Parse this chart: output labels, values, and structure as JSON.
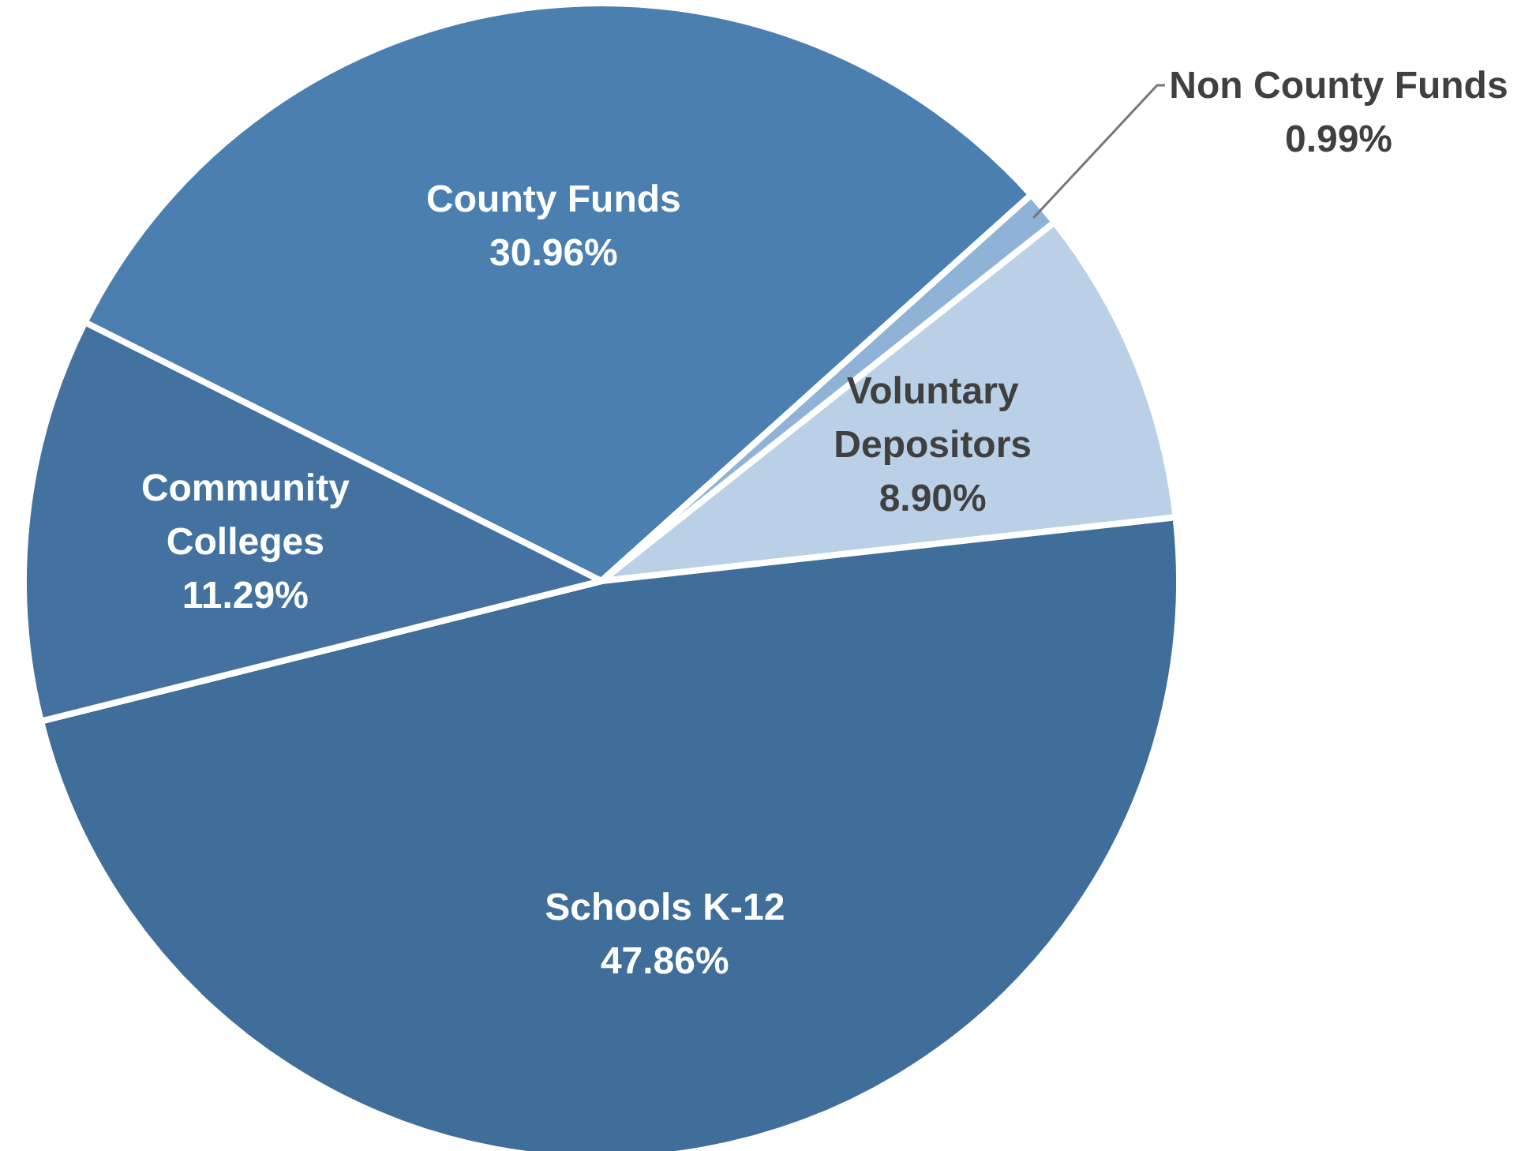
{
  "chart_data": {
    "type": "pie",
    "categories": [
      "County Funds",
      "Non County Funds",
      "Voluntary Depositors",
      "Schools K-12",
      "Community Colleges"
    ],
    "values": [
      30.96,
      0.99,
      8.9,
      47.86,
      11.29
    ],
    "value_labels": [
      "30.96%",
      "0.99%",
      "8.90%",
      "47.86%",
      "11.29%"
    ],
    "colors": [
      "#4a7fb0",
      "#8fb3d6",
      "#b9d0e6",
      "#3f6e9a",
      "#4472a0"
    ]
  }
}
